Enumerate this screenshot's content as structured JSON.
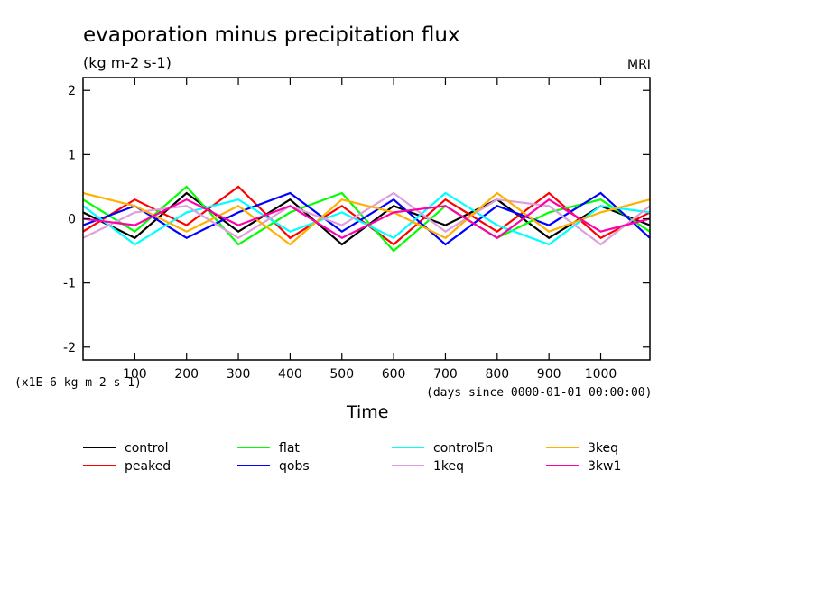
{
  "chart_data": {
    "type": "line",
    "title": "evaporation minus precipitation flux",
    "subtitle": "(kg m-2 s-1)",
    "source_label": "MRI",
    "xlabel": "Time",
    "x_units": "(days since 0000-01-01 00:00:00)",
    "y_scale_note": "(x1E-6 kg m-2 s-1)",
    "ylim": [
      -2.2,
      2.2
    ],
    "xlim": [
      0,
      1095
    ],
    "x_ticks": [
      100,
      200,
      300,
      400,
      500,
      600,
      700,
      800,
      900,
      1000
    ],
    "y_ticks": [
      -2,
      -1,
      0,
      1,
      2
    ],
    "grid": false,
    "legend_position": "bottom",
    "series": [
      {
        "name": "control",
        "color": "#000000",
        "x": [
          0,
          100,
          200,
          300,
          400,
          500,
          600,
          700,
          800,
          900,
          1000,
          1095
        ],
        "values": [
          0.1,
          -0.3,
          0.4,
          -0.2,
          0.3,
          -0.4,
          0.2,
          -0.1,
          0.3,
          -0.3,
          0.2,
          -0.1
        ]
      },
      {
        "name": "peaked",
        "color": "#ff0000",
        "x": [
          0,
          100,
          200,
          300,
          400,
          500,
          600,
          700,
          800,
          900,
          1000,
          1095
        ],
        "values": [
          -0.2,
          0.3,
          -0.1,
          0.5,
          -0.3,
          0.2,
          -0.4,
          0.3,
          -0.2,
          0.4,
          -0.3,
          0.1
        ]
      },
      {
        "name": "flat",
        "color": "#00ff00",
        "x": [
          0,
          100,
          200,
          300,
          400,
          500,
          600,
          700,
          800,
          900,
          1000,
          1095
        ],
        "values": [
          0.3,
          -0.2,
          0.5,
          -0.4,
          0.1,
          0.4,
          -0.5,
          0.2,
          -0.3,
          0.1,
          0.3,
          -0.2
        ]
      },
      {
        "name": "qobs",
        "color": "#0000ff",
        "x": [
          0,
          100,
          200,
          300,
          400,
          500,
          600,
          700,
          800,
          900,
          1000,
          1095
        ],
        "values": [
          -0.1,
          0.2,
          -0.3,
          0.1,
          0.4,
          -0.2,
          0.3,
          -0.4,
          0.2,
          -0.1,
          0.4,
          -0.3
        ]
      },
      {
        "name": "control5n",
        "color": "#00ffff",
        "x": [
          0,
          100,
          200,
          300,
          400,
          500,
          600,
          700,
          800,
          900,
          1000,
          1095
        ],
        "values": [
          0.2,
          -0.4,
          0.1,
          0.3,
          -0.2,
          0.1,
          -0.3,
          0.4,
          -0.1,
          -0.4,
          0.2,
          0.1
        ]
      },
      {
        "name": "1keq",
        "color": "#dda0dd",
        "x": [
          0,
          100,
          200,
          300,
          400,
          500,
          600,
          700,
          800,
          900,
          1000,
          1095
        ],
        "values": [
          -0.3,
          0.1,
          0.2,
          -0.3,
          0.2,
          -0.1,
          0.4,
          -0.2,
          0.3,
          0.2,
          -0.4,
          0.2
        ]
      },
      {
        "name": "3keq",
        "color": "#ffb000",
        "x": [
          0,
          100,
          200,
          300,
          400,
          500,
          600,
          700,
          800,
          900,
          1000,
          1095
        ],
        "values": [
          0.4,
          0.2,
          -0.2,
          0.2,
          -0.4,
          0.3,
          0.1,
          -0.3,
          0.4,
          -0.2,
          0.1,
          0.3
        ]
      },
      {
        "name": "3kw1",
        "color": "#ff00aa",
        "x": [
          0,
          100,
          200,
          300,
          400,
          500,
          600,
          700,
          800,
          900,
          1000,
          1095
        ],
        "values": [
          0.0,
          -0.1,
          0.3,
          -0.1,
          0.2,
          -0.3,
          0.1,
          0.2,
          -0.3,
          0.3,
          -0.2,
          0.0
        ]
      }
    ]
  }
}
